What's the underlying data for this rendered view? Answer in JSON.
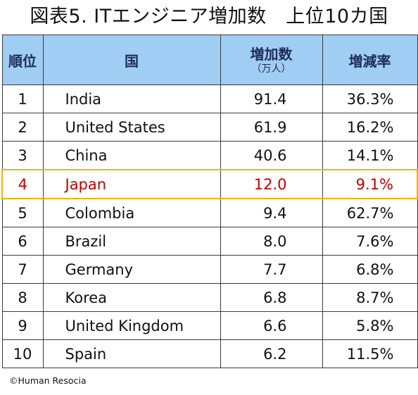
{
  "title": "図表5. ITエンジニア増加数　上位10カ国",
  "table": {
    "headers": {
      "rank": "順位",
      "country": "国",
      "increase": "増加数",
      "increase_unit": "（万人）",
      "rate": "増減率"
    },
    "rows": [
      {
        "rank": "1",
        "country": "India",
        "increase": "91.4",
        "rate": "36.3%"
      },
      {
        "rank": "2",
        "country": "United States",
        "increase": "61.9",
        "rate": "16.2%"
      },
      {
        "rank": "3",
        "country": "China",
        "increase": "40.6",
        "rate": "14.1%"
      },
      {
        "rank": "4",
        "country": "Japan",
        "increase": "12.0",
        "rate": "9.1%"
      },
      {
        "rank": "5",
        "country": "Colombia",
        "increase": "9.4",
        "rate": "62.7%"
      },
      {
        "rank": "6",
        "country": "Brazil",
        "increase": "8.0",
        "rate": "7.6%"
      },
      {
        "rank": "7",
        "country": "Germany",
        "increase": "7.7",
        "rate": "6.8%"
      },
      {
        "rank": "8",
        "country": "Korea",
        "increase": "6.8",
        "rate": "8.7%"
      },
      {
        "rank": "9",
        "country": "United Kingdom",
        "increase": "6.6",
        "rate": "5.8%"
      },
      {
        "rank": "10",
        "country": "Spain",
        "increase": "6.2",
        "rate": "11.5%"
      }
    ],
    "highlighted_rank": "4"
  },
  "colors": {
    "header_background": "#9fcdf3",
    "header_text": "#1f2d5a",
    "highlight_text": "#c00000",
    "highlight_border": "#f4b400"
  },
  "credit": "©Human Resocia"
}
